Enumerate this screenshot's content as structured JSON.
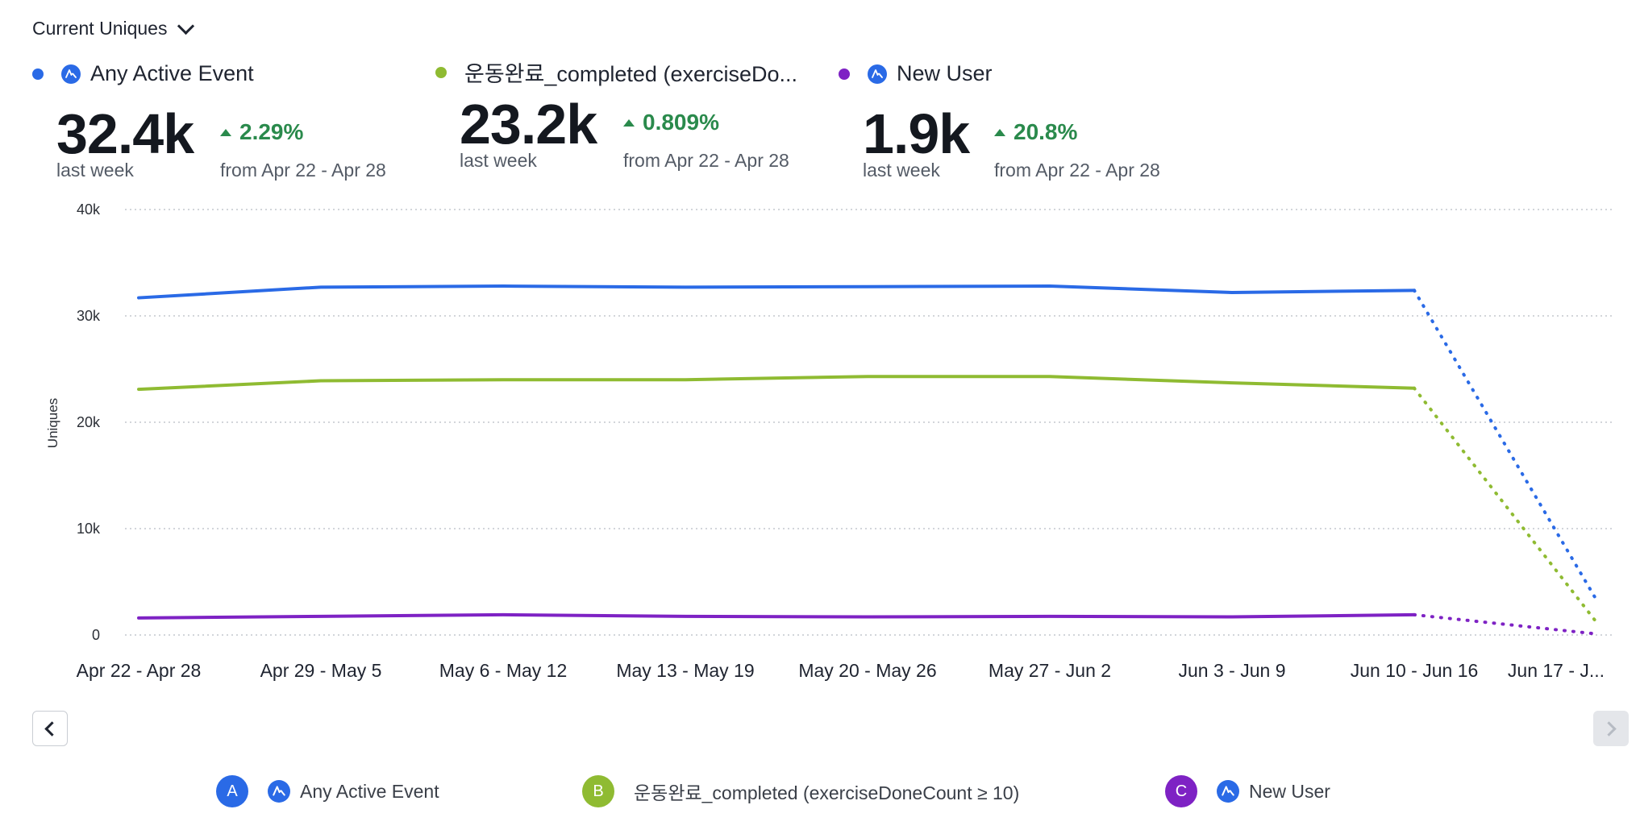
{
  "header": {
    "metric_selector_label": "Current Uniques"
  },
  "kpis": [
    {
      "name": "Any Active Event",
      "color": "#2a6ae6",
      "value": "32.4k",
      "period": "last week",
      "delta": "2.29%",
      "delta_direction": "up",
      "from": "from Apr 22 - Apr 28",
      "icon": "amplitude-icon"
    },
    {
      "name": "운동완료_completed (exerciseDo...",
      "color": "#8fbb32",
      "value": "23.2k",
      "period": "last week",
      "delta": "0.809%",
      "delta_direction": "up",
      "from": "from Apr 22 - Apr 28",
      "icon": "none"
    },
    {
      "name": "New User",
      "color": "#7e22c4",
      "value": "1.9k",
      "period": "last week",
      "delta": "20.8%",
      "delta_direction": "up",
      "from": "from Apr 22 - Apr 28",
      "icon": "amplitude-icon"
    }
  ],
  "chart_data": {
    "type": "line",
    "ylabel": "Uniques",
    "xlabel": "",
    "ylim": [
      0,
      40000
    ],
    "yticks": [
      0,
      10000,
      20000,
      30000,
      40000
    ],
    "ytick_labels": [
      "0",
      "10k",
      "20k",
      "30k",
      "40k"
    ],
    "grid": true,
    "grid_style": "dotted",
    "categories": [
      "Apr 22 - Apr 28",
      "Apr 29 - May 5",
      "May 6 - May 12",
      "May 13 - May 19",
      "May 20 - May 26",
      "May 27 - Jun 2",
      "Jun 3 - Jun 9",
      "Jun 10 - Jun 16",
      "Jun 17 - J..."
    ],
    "incomplete_last_period": true,
    "series": [
      {
        "name": "Any Active Event",
        "color": "#2a6ae6",
        "values": [
          31700,
          32700,
          32800,
          32700,
          32750,
          32800,
          32200,
          32400,
          3300
        ]
      },
      {
        "name": "운동완료_completed (exerciseDoneCount ≥ 10)",
        "color": "#8fbb32",
        "values": [
          23100,
          23900,
          24000,
          24000,
          24300,
          24300,
          23700,
          23200,
          1200
        ]
      },
      {
        "name": "New User",
        "color": "#7e22c4",
        "values": [
          1600,
          1750,
          1900,
          1750,
          1700,
          1750,
          1700,
          1900,
          100
        ]
      }
    ]
  },
  "legend": [
    {
      "letter": "A",
      "color": "#2a6ae6",
      "label": "Any Active Event",
      "icon": "amplitude-icon"
    },
    {
      "letter": "B",
      "color": "#8fbb32",
      "label": "운동완료_completed (exerciseDoneCount ≥ 10)",
      "icon": "none"
    },
    {
      "letter": "C",
      "color": "#7e22c4",
      "label": "New User",
      "icon": "amplitude-icon"
    }
  ]
}
